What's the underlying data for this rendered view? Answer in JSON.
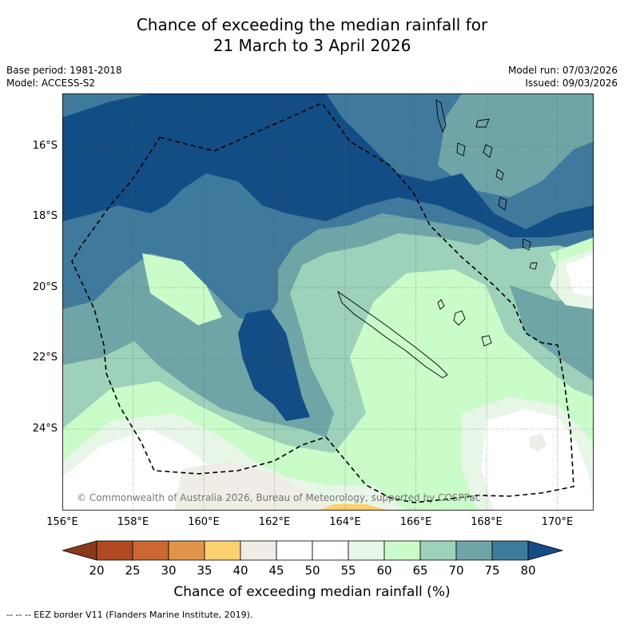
{
  "title_line1": "Chance of exceeding the median rainfall for",
  "title_line2": "21 March to 3 April 2026",
  "base_period": "Base period: 1981-2018",
  "model": "Model: ACCESS-S2",
  "model_run": "Model run: 07/03/2026",
  "issued": "Issued: 09/03/2026",
  "copyright": "© Commonwealth of Australia 2026, Bureau of Meteorology, supported by COSPPac",
  "lat_labels": [
    "16°S",
    "18°S",
    "20°S",
    "22°S",
    "24°S"
  ],
  "lon_labels": [
    "156°E",
    "158°E",
    "160°E",
    "162°E",
    "164°E",
    "166°E",
    "168°E",
    "170°E"
  ],
  "colorbar": {
    "ticks": [
      "20",
      "25",
      "30",
      "35",
      "40",
      "45",
      "50",
      "55",
      "60",
      "65",
      "70",
      "75",
      "80"
    ],
    "colors": [
      "#b14a22",
      "#cc6633",
      "#e09548",
      "#ffd070",
      "#f0ece6",
      "#ffffff",
      "#ffffff",
      "#e8f6e8",
      "#c9fcc9",
      "#9dd1b9",
      "#6fa5a6",
      "#3f7a9d",
      "#134d85"
    ],
    "label": "Chance of exceeding median rainfall (%)"
  },
  "footnote": "--  --  -- EEZ border V11 (Flanders Marine Institute, 2019)."
}
